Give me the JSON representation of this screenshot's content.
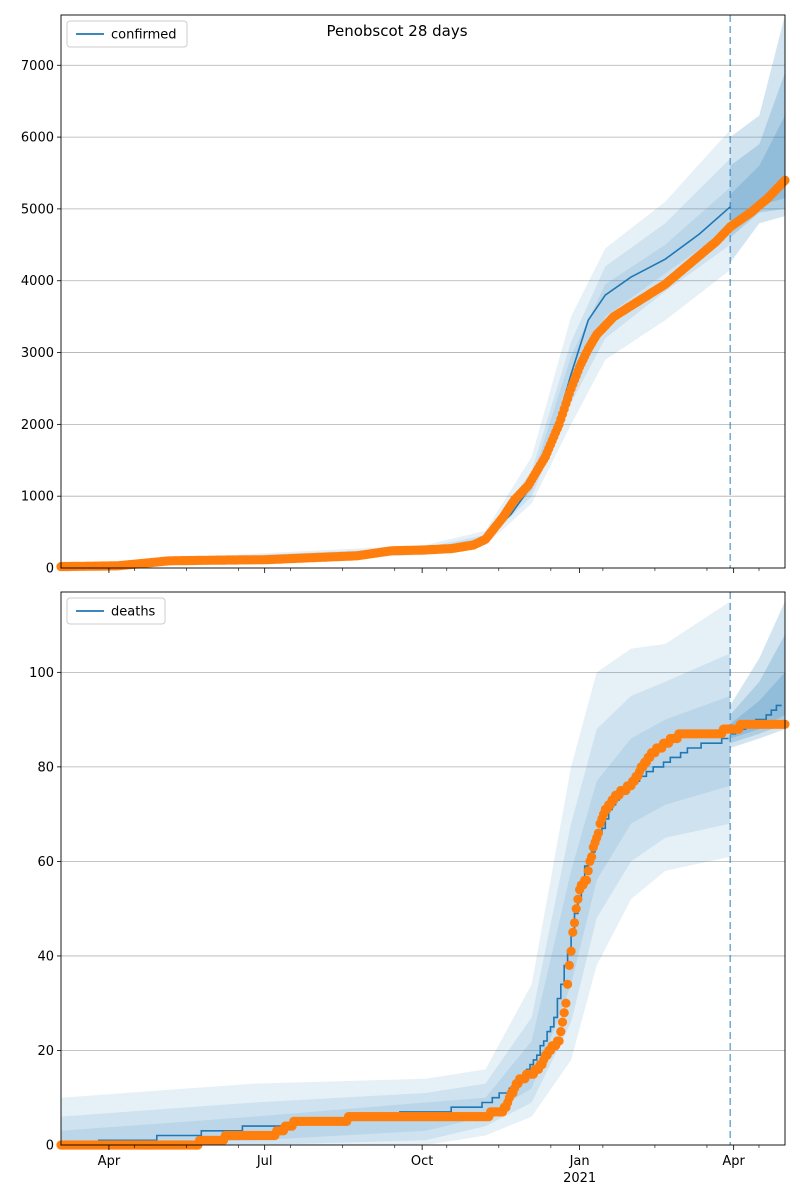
{
  "figure_title": "Penobscot 28 days",
  "colors": {
    "model": "#1f77b4",
    "observed": "#ff7f0e",
    "grid": "#b0b0b0"
  },
  "x_axis": {
    "ticks": [
      {
        "label": "Apr",
        "day": 15
      },
      {
        "label": "Jul",
        "day": 106
      },
      {
        "label": "Oct",
        "day": 198
      },
      {
        "label": "Jan",
        "sublabel": "2021",
        "day": 290
      },
      {
        "label": "Apr",
        "day": 380
      }
    ]
  },
  "chart_data": [
    {
      "type": "line",
      "legend": "confirmed",
      "legend_position": "top-left",
      "grid": "y",
      "x_range_days": [
        -13,
        410
      ],
      "forecast_start_day": 378,
      "ylim": [
        0,
        7700
      ],
      "yticks": [
        0,
        1000,
        2000,
        3000,
        4000,
        5000,
        6000,
        7000
      ],
      "model": {
        "x": [
          -13,
          20,
          60,
          100,
          140,
          170,
          200,
          220,
          235,
          250,
          262,
          275,
          285,
          295,
          305,
          320,
          340,
          360,
          378
        ],
        "y": [
          30,
          50,
          100,
          120,
          160,
          230,
          250,
          290,
          400,
          750,
          1150,
          1850,
          2700,
          3450,
          3800,
          4050,
          4300,
          4650,
          5030
        ]
      },
      "bands": [
        {
          "x": [
            -13,
            200,
            235,
            262,
            285,
            305,
            340,
            378
          ],
          "lo": [
            20,
            180,
            320,
            900,
            2000,
            2900,
            3450,
            4150
          ],
          "hi": [
            60,
            320,
            520,
            1550,
            3500,
            4450,
            5100,
            6100
          ]
        },
        {
          "x": [
            -13,
            200,
            235,
            262,
            285,
            305,
            340,
            378
          ],
          "lo": [
            25,
            210,
            360,
            1000,
            2300,
            3200,
            3850,
            4500
          ],
          "hi": [
            50,
            290,
            460,
            1350,
            3150,
            4200,
            4800,
            5700
          ]
        },
        {
          "x": [
            -13,
            200,
            235,
            262,
            285,
            305,
            340,
            378
          ],
          "lo": [
            28,
            230,
            380,
            1080,
            2500,
            3500,
            4100,
            4750
          ],
          "hi": [
            40,
            270,
            430,
            1230,
            2950,
            3950,
            4500,
            5300
          ]
        }
      ],
      "forecast_bands": [
        {
          "x": [
            378,
            395,
            410
          ],
          "lo": [
            4250,
            4800,
            4900
          ],
          "hi": [
            6000,
            6300,
            7700
          ]
        },
        {
          "x": [
            378,
            395,
            410
          ],
          "lo": [
            4600,
            4950,
            5000
          ],
          "hi": [
            5600,
            5900,
            6900
          ]
        },
        {
          "x": [
            378,
            395,
            410
          ],
          "lo": [
            4800,
            5050,
            5150
          ],
          "hi": [
            5200,
            5600,
            6300
          ]
        }
      ],
      "observed_series": [
        {
          "x": [
            -13,
            20,
            50,
            80,
            106,
            130,
            160,
            180,
            198,
            215,
            228,
            235,
            245,
            252,
            260,
            270,
            278,
            285,
            290,
            295,
            300,
            310,
            320,
            330,
            340,
            350,
            360,
            370,
            378,
            390,
            400,
            410
          ],
          "y": [
            20,
            30,
            100,
            110,
            115,
            140,
            170,
            240,
            250,
            270,
            320,
            400,
            700,
            950,
            1150,
            1550,
            2000,
            2500,
            2800,
            3050,
            3250,
            3500,
            3650,
            3800,
            3950,
            4150,
            4350,
            4550,
            4750,
            4950,
            5150,
            5400
          ]
        }
      ]
    },
    {
      "type": "line",
      "legend": "deaths",
      "legend_position": "top-left",
      "grid": "y",
      "x_range_days": [
        -13,
        410
      ],
      "forecast_start_day": 378,
      "ylim": [
        0,
        117
      ],
      "yticks": [
        0,
        20,
        40,
        60,
        80,
        100
      ],
      "model": {
        "x": [
          -13,
          30,
          80,
          106,
          200,
          230,
          250,
          262,
          275,
          285,
          292,
          300,
          310,
          325,
          340,
          355,
          378
        ],
        "y": [
          0,
          1,
          3,
          4,
          7,
          8,
          12,
          17,
          27,
          45,
          58,
          65,
          73,
          78,
          81,
          84,
          86
        ]
      },
      "bands": [
        {
          "x": [
            -13,
            100,
            200,
            235,
            262,
            285,
            300,
            320,
            340,
            378
          ],
          "lo": [
            0,
            0,
            0,
            2,
            6,
            18,
            38,
            52,
            58,
            61
          ],
          "hi": [
            10,
            13,
            14,
            16,
            34,
            80,
            100,
            105,
            106,
            115
          ]
        },
        {
          "x": [
            -13,
            100,
            200,
            235,
            262,
            285,
            300,
            320,
            340,
            378
          ],
          "lo": [
            0,
            0,
            1,
            4,
            9,
            26,
            48,
            60,
            65,
            68
          ],
          "hi": [
            6,
            9,
            11,
            13,
            27,
            68,
            88,
            95,
            98,
            104
          ]
        },
        {
          "x": [
            -13,
            100,
            200,
            235,
            262,
            285,
            300,
            320,
            340,
            378
          ],
          "lo": [
            0,
            1,
            3,
            6,
            12,
            34,
            56,
            68,
            72,
            76
          ],
          "hi": [
            3,
            6,
            9,
            10,
            22,
            58,
            77,
            86,
            90,
            95
          ]
        }
      ],
      "forecast_bands": [
        {
          "x": [
            378,
            395,
            410
          ],
          "lo": [
            84,
            86,
            88
          ],
          "hi": [
            93,
            103,
            115
          ]
        },
        {
          "x": [
            378,
            395,
            410
          ],
          "lo": [
            85,
            87,
            89
          ],
          "hi": [
            91,
            98,
            108
          ]
        },
        {
          "x": [
            378,
            395,
            410
          ],
          "lo": [
            86,
            88,
            91
          ],
          "hi": [
            89,
            94,
            100
          ]
        }
      ],
      "forecast_model": {
        "x": [
          378,
          390,
          400,
          410
        ],
        "y": [
          87,
          89,
          91,
          94
        ]
      },
      "observed_series": [
        {
          "x": [
            -13,
            60,
            75,
            90,
            110,
            125,
            140,
            170,
            200,
            230,
            245,
            255,
            262,
            268,
            272,
            278,
            282,
            286,
            290,
            294,
            298,
            305,
            312,
            320,
            330,
            340,
            350,
            360,
            370,
            378,
            390,
            410
          ],
          "y": [
            0,
            0,
            1,
            2,
            2,
            5,
            5,
            6,
            6,
            6,
            7,
            14,
            15,
            17,
            20,
            22,
            30,
            45,
            54,
            56,
            63,
            71,
            74,
            76,
            82,
            85,
            87,
            87,
            87,
            88,
            89,
            89
          ]
        }
      ]
    }
  ]
}
